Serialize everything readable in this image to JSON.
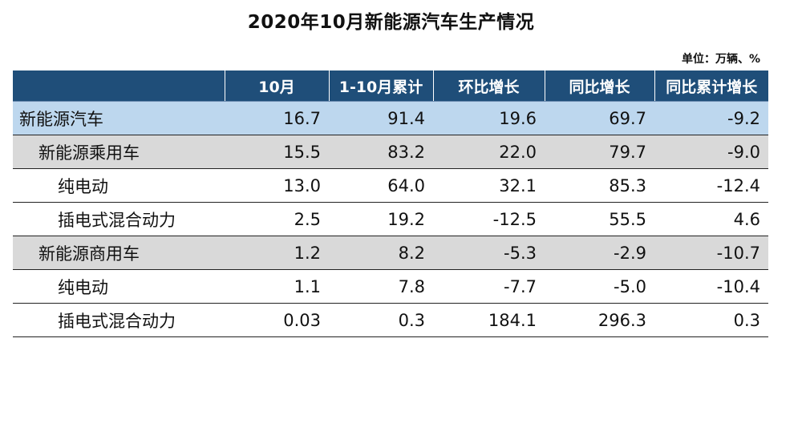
{
  "title": "2020年10月新能源汽车生产情况",
  "unit_note": "单位：万辆、%",
  "table": {
    "headers": [
      "",
      "10月",
      "1-10月累计",
      "环比增长",
      "同比增长",
      "同比累计增长"
    ],
    "rows": [
      {
        "label": "新能源汽车",
        "level": 0,
        "style": "total",
        "values": [
          "16.7",
          "91.4",
          "19.6",
          "69.7",
          "-9.2"
        ]
      },
      {
        "label": "新能源乘用车",
        "level": 1,
        "style": "group",
        "values": [
          "15.5",
          "83.2",
          "22.0",
          "79.7",
          "-9.0"
        ]
      },
      {
        "label": "纯电动",
        "level": 2,
        "style": "item",
        "values": [
          "13.0",
          "64.0",
          "32.1",
          "85.3",
          "-12.4"
        ]
      },
      {
        "label": "插电式混合动力",
        "level": 2,
        "style": "item",
        "values": [
          "2.5",
          "19.2",
          "-12.5",
          "55.5",
          "4.6"
        ]
      },
      {
        "label": "新能源商用车",
        "level": 1,
        "style": "group",
        "values": [
          "1.2",
          "8.2",
          "-5.3",
          "-2.9",
          "-10.7"
        ]
      },
      {
        "label": "纯电动",
        "level": 2,
        "style": "item",
        "values": [
          "1.1",
          "7.8",
          "-7.7",
          "-5.0",
          "-10.4"
        ]
      },
      {
        "label": "插电式混合动力",
        "level": 2,
        "style": "item",
        "values": [
          "0.03",
          "0.3",
          "184.1",
          "296.3",
          "0.3"
        ]
      }
    ]
  },
  "colors": {
    "header_bg": "#1f4e79",
    "header_text": "#ffffff",
    "total_row_bg": "#bdd7ee",
    "group_row_bg": "#d9d9d9",
    "item_row_bg": "#ffffff"
  }
}
